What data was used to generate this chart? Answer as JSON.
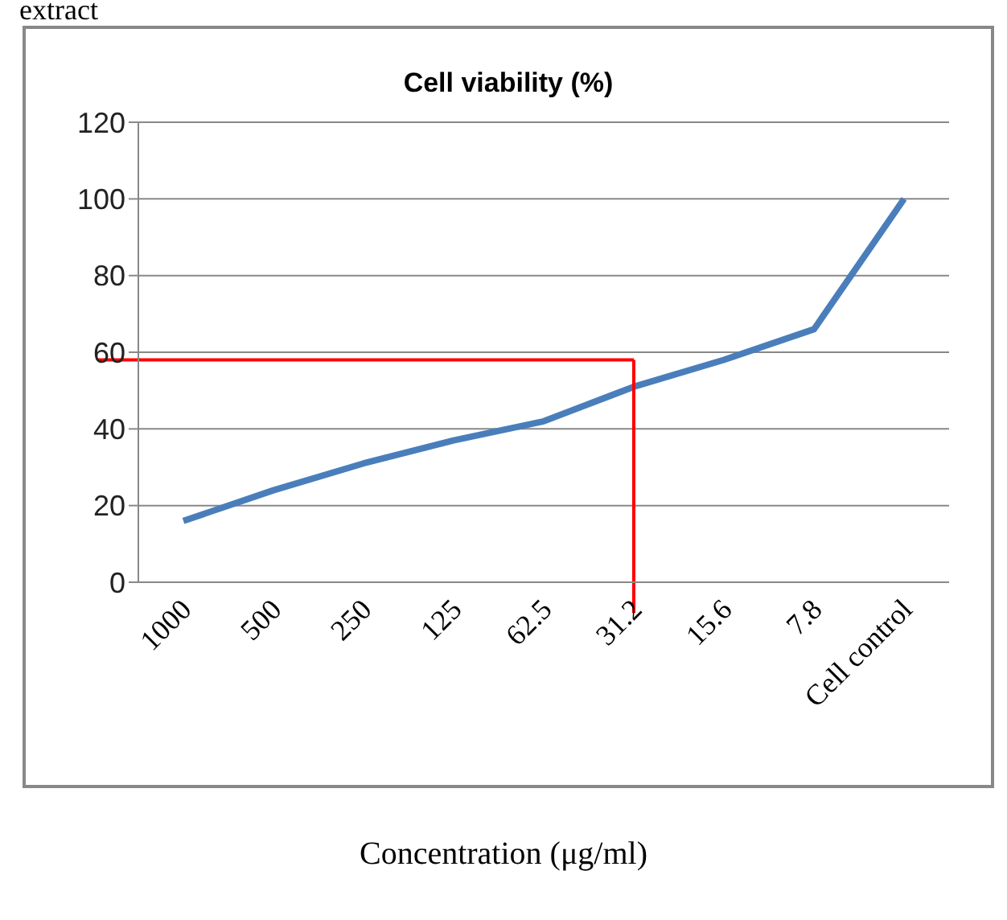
{
  "chart_data": {
    "type": "line",
    "title": "Cell viability (%)",
    "xlabel": "Concentration (μg/ml)",
    "annotations": [
      "extract"
    ],
    "categories": [
      "1000",
      "500",
      "250",
      "125",
      "62.5",
      "31.2",
      "15.6",
      "7.8",
      "Cell control"
    ],
    "series": [
      {
        "color": "#4a7ebb",
        "values": [
          16,
          24,
          31,
          37,
          42,
          51,
          58,
          66,
          100
        ]
      }
    ],
    "ylim": [
      0,
      120
    ],
    "yticks": [
      0,
      20,
      40,
      60,
      80,
      100,
      120
    ],
    "grid": "y",
    "legend": false,
    "marker": "none",
    "ref_lines": [
      {
        "axis": "y",
        "value": 58,
        "color": "#ff0000"
      },
      {
        "axis": "x",
        "value": "31.2",
        "color": "#ff0000"
      }
    ]
  }
}
